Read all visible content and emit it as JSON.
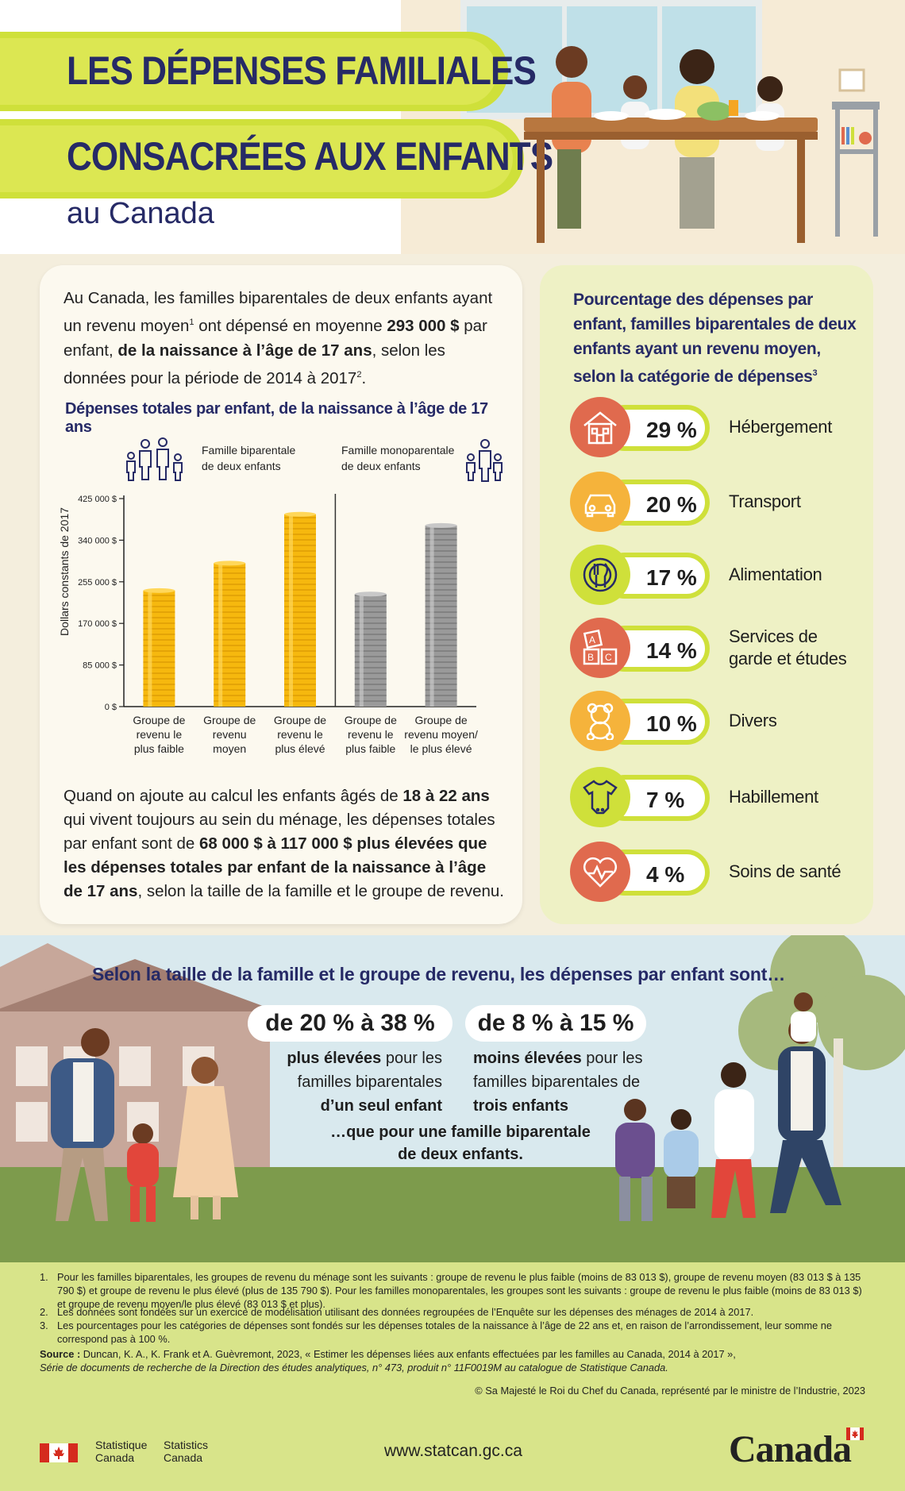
{
  "header": {
    "title_line1": "LES DÉPENSES FAMILIALES",
    "title_line2": "CONSACRÉES AUX ENFANTS",
    "subtitle": "au Canada"
  },
  "intro": {
    "part1": "Au Canada, les familles biparentales de deux enfants ayant un revenu moyen",
    "sup1": "1",
    "part2": " ont dépensé en moyenne ",
    "bold1": "293 000 $",
    "part3": " par enfant, ",
    "bold2": "de la naissance à l’âge de 17 ans",
    "part4": ", selon les données pour la période de 2014 à 2017",
    "sup2": "2",
    "part5": "."
  },
  "chart_data": {
    "type": "bar",
    "title": "Dépenses totales par enfant, de la naissance à l’âge de 17 ans",
    "ylabel": "Dollars constants de 2017",
    "ylim": [
      0,
      425000
    ],
    "yticks": [
      0,
      85000,
      170000,
      255000,
      340000,
      425000
    ],
    "ytick_labels": [
      "0 $",
      "85 000 $",
      "170 000 $",
      "255 000 $",
      "340 000 $",
      "425 000 $"
    ],
    "groups": [
      {
        "name": "Famille biparentale de deux enfants",
        "name_line1": "Famille biparentale",
        "name_line2": "de deux enfants",
        "color": "#f6b80e"
      },
      {
        "name": "Famille monoparentale de deux enfants",
        "name_line1": "Famille monoparentale",
        "name_line2": "de deux enfants",
        "color": "#9a9a9a"
      }
    ],
    "categories": [
      {
        "group": 0,
        "label_lines": [
          "Groupe de",
          "revenu le",
          "plus faible"
        ],
        "value": 237000
      },
      {
        "group": 0,
        "label_lines": [
          "Groupe de",
          "revenu",
          "moyen"
        ],
        "value": 293000
      },
      {
        "group": 0,
        "label_lines": [
          "Groupe de",
          "revenu le",
          "plus élevé"
        ],
        "value": 393000
      },
      {
        "group": 1,
        "label_lines": [
          "Groupe de",
          "revenu le",
          "plus faible"
        ],
        "value": 230000
      },
      {
        "group": 1,
        "label_lines": [
          "Groupe de",
          "revenu moyen/",
          "le plus élevé"
        ],
        "value": 370000
      }
    ]
  },
  "note2": {
    "p1": "Quand on ajoute au calcul les enfants âgés de ",
    "b1": "18 à 22 ans",
    "p2": " qui vivent toujours au sein du ménage, les dépenses totales par enfant sont de ",
    "b2": "68 000 $ à 117 000 $ plus élevées que les dépenses totales par enfant de la naissance à l’âge de 17 ans",
    "p3": ", selon la taille de la famille et le groupe de revenu."
  },
  "right_panel": {
    "title": "Pourcentage des dépenses par enfant, familles biparentales de deux enfants ayant un revenu moyen, selon la catégorie de dépenses",
    "title_sup": "3",
    "categories": [
      {
        "pct": "29 %",
        "label": "Hébergement",
        "icon": "house-icon",
        "color": "#e06a4e"
      },
      {
        "pct": "20 %",
        "label": "Transport",
        "icon": "car-icon",
        "color": "#f5b33b"
      },
      {
        "pct": "17 %",
        "label": "Alimentation",
        "icon": "plate-icon",
        "color": "#cfe03a"
      },
      {
        "pct": "14 %",
        "label": "Services de garde et études",
        "label_line1": "Services de",
        "label_line2": "garde et études",
        "icon": "abc-blocks-icon",
        "color": "#e06a4e"
      },
      {
        "pct": "10 %",
        "label": "Divers",
        "icon": "teddy-bear-icon",
        "color": "#f5b33b"
      },
      {
        "pct": "7 %",
        "label": "Habillement",
        "icon": "onesie-icon",
        "color": "#cfe03a"
      },
      {
        "pct": "4 %",
        "label": "Soins de santé",
        "icon": "heart-pulse-icon",
        "color": "#e06a4e"
      }
    ]
  },
  "comparison": {
    "title": "Selon la taille de la famille et le groupe de revenu, les dépenses par enfant sont…",
    "left": {
      "range": "de 20 % à 38 %",
      "b1": "plus élevées",
      "t1": " pour les",
      "t2": "familles biparentales",
      "b2": "d’un seul enfant"
    },
    "right": {
      "range": "de 8 % à 15 %",
      "b1": "moins élevées",
      "t1": " pour les",
      "t2": "familles biparentales de",
      "b2": "trois enfants"
    },
    "closing_line1": "…que pour une famille biparentale",
    "closing_line2": "de deux enfants."
  },
  "footnotes": {
    "n1": "1.",
    "f1": "Pour les familles biparentales, les groupes de revenu du ménage sont les suivants : groupe de revenu le plus faible (moins de 83 013 $), groupe de revenu moyen (83 013 $ à 135 790 $) et groupe de revenu le plus élevé (plus de 135 790 $). Pour les familles monoparentales, les groupes sont les suivants : groupe de revenu le plus faible (moins de 83 013 $) et groupe de revenu moyen/le plus élevé (83 013 $ et plus).",
    "n2": "2.",
    "f2": "Les données sont fondées sur un exercice de modélisation utilisant des données regroupées de l’Enquête sur les dépenses des ménages de 2014 à 2017.",
    "n3": "3.",
    "f3": "Les pourcentages pour les catégories de dépenses sont fondés sur les dépenses totales de la naissance à l’âge de 22 ans et, en raison de l’arrondissement, leur somme ne correspond pas à 100 %.",
    "source_label": "Source :",
    "source_text": " Duncan, K. A., K. Frank et A. Guèvremont, 2023, « Estimer les dépenses liées aux enfants effectuées par les familles au Canada, 2014 à 2017 »,",
    "source_line2": "Série de documents de recherche de la Direction des études analytiques, n° 473, produit n° 11F0019M au catalogue de Statistique Canada.",
    "copyright": "© Sa Majesté le Roi du Chef du Canada, représenté par le ministre de l’Industrie, 2023"
  },
  "branding": {
    "fr1": "Statistique",
    "fr2": "Canada",
    "en1": "Statistics",
    "en2": "Canada",
    "url": "www.statcan.gc.ca",
    "wordmark": "Canada"
  }
}
